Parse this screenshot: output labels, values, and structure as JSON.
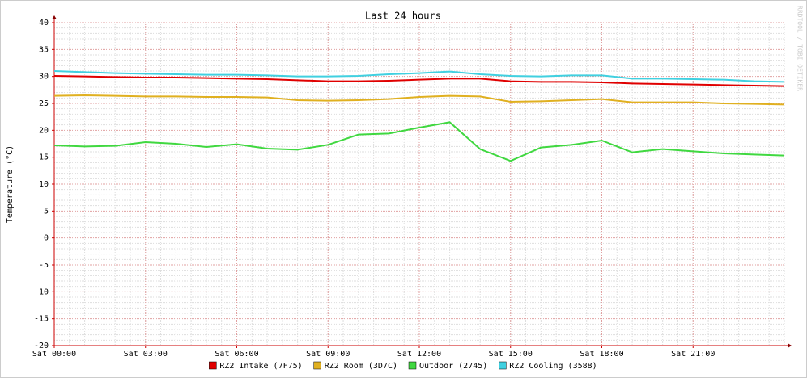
{
  "chart_data": {
    "type": "line",
    "title": "Last 24 hours",
    "y_label": "Temperature (°C)",
    "watermark": "RRDTOOL / TOBI OETIKER",
    "x": [
      0,
      1,
      2,
      3,
      4,
      5,
      6,
      7,
      8,
      9,
      10,
      11,
      12,
      13,
      14,
      15,
      16,
      17,
      18,
      19,
      20,
      21,
      22,
      23,
      24
    ],
    "xlim": [
      0,
      24
    ],
    "xticks": [
      {
        "value": 0,
        "label": "Sat 00:00"
      },
      {
        "value": 3,
        "label": "Sat 03:00"
      },
      {
        "value": 6,
        "label": "Sat 06:00"
      },
      {
        "value": 9,
        "label": "Sat 09:00"
      },
      {
        "value": 12,
        "label": "Sat 12:00"
      },
      {
        "value": 15,
        "label": "Sat 15:00"
      },
      {
        "value": 18,
        "label": "Sat 18:00"
      },
      {
        "value": 21,
        "label": "Sat 21:00"
      }
    ],
    "ylim": [
      -20,
      40
    ],
    "yticks": [
      -20,
      -15,
      -10,
      -5,
      0,
      5,
      10,
      15,
      20,
      25,
      30,
      35,
      40
    ],
    "grid": true,
    "legend": "bottom",
    "series": [
      {
        "name": "RZ2 Intake (7F75)",
        "color": "#e00000",
        "values": [
          30.1,
          30,
          29.9,
          29.8,
          29.8,
          29.7,
          29.6,
          29.5,
          29.3,
          29.1,
          29.1,
          29.2,
          29.4,
          29.6,
          29.6,
          29.1,
          29,
          29,
          28.9,
          28.7,
          28.6,
          28.5,
          28.4,
          28.3,
          28.2
        ]
      },
      {
        "name": "RZ2 Room (3D7C)",
        "color": "#e0b020",
        "values": [
          26.4,
          26.5,
          26.4,
          26.3,
          26.3,
          26.2,
          26.2,
          26.1,
          25.6,
          25.5,
          25.6,
          25.8,
          26.2,
          26.4,
          26.3,
          25.3,
          25.4,
          25.6,
          25.8,
          25.2,
          25.2,
          25.2,
          25,
          24.9,
          24.8
        ]
      },
      {
        "name": "Outdoor (2745)",
        "color": "#40d840",
        "values": [
          17.2,
          17,
          17.1,
          17.8,
          17.5,
          16.9,
          17.4,
          16.6,
          16.4,
          17.3,
          19.2,
          19.4,
          20.5,
          21.5,
          16.5,
          14.3,
          16.8,
          17.3,
          18.1,
          15.9,
          16.5,
          16.1,
          15.7,
          15.5,
          15.3
        ]
      },
      {
        "name": "RZ2 Cooling (3588)",
        "color": "#40d0e0",
        "values": [
          31,
          30.8,
          30.6,
          30.5,
          30.4,
          30.3,
          30.3,
          30.2,
          30,
          30,
          30.1,
          30.4,
          30.6,
          30.9,
          30.4,
          30.1,
          30,
          30.2,
          30.2,
          29.6,
          29.6,
          29.5,
          29.4,
          29.1,
          29
        ]
      }
    ]
  }
}
